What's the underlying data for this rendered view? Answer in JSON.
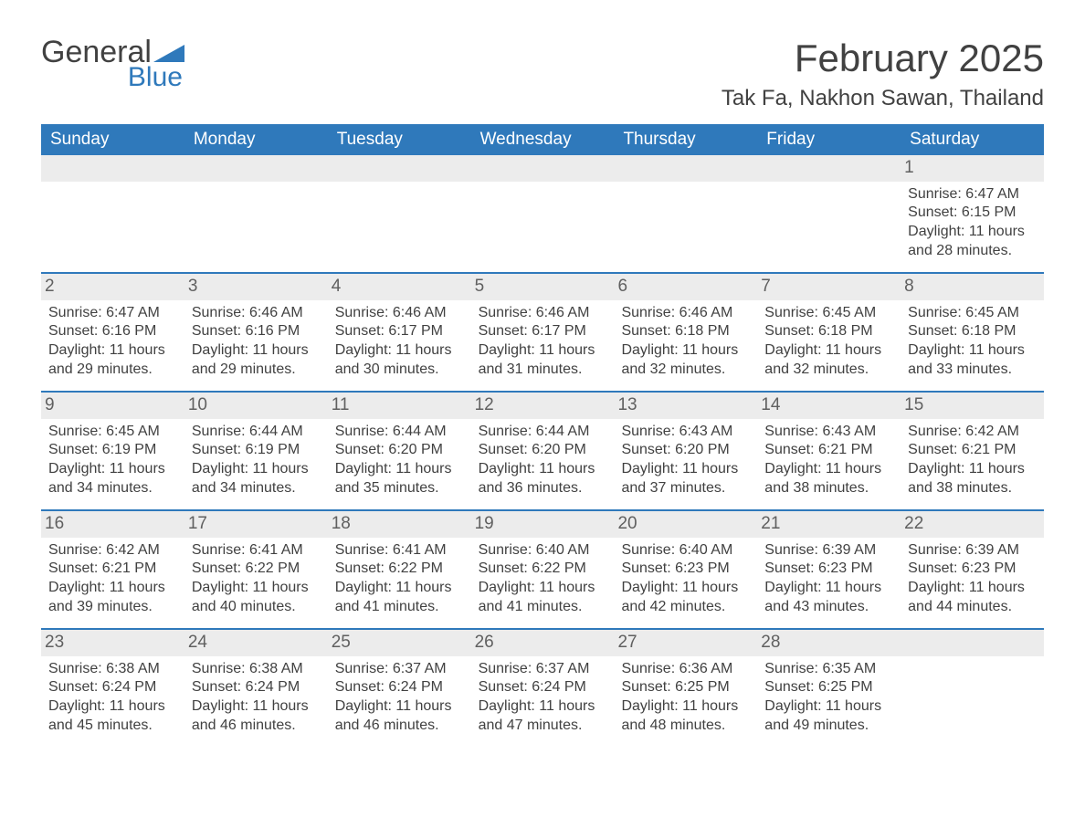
{
  "logo": {
    "word1": "General",
    "word2": "Blue"
  },
  "title": "February 2025",
  "location": "Tak Fa, Nakhon Sawan, Thailand",
  "colors": {
    "brand_blue": "#2f79bb",
    "header_bg": "#2f79bb",
    "header_text": "#ffffff",
    "daynum_bg": "#ececec",
    "text": "#414141",
    "row_border": "#2f79bb"
  },
  "weekdays": [
    "Sunday",
    "Monday",
    "Tuesday",
    "Wednesday",
    "Thursday",
    "Friday",
    "Saturday"
  ],
  "weeks": [
    [
      null,
      null,
      null,
      null,
      null,
      null,
      {
        "n": "1",
        "sr": "6:47 AM",
        "ss": "6:15 PM",
        "dl": "11 hours and 28 minutes."
      }
    ],
    [
      {
        "n": "2",
        "sr": "6:47 AM",
        "ss": "6:16 PM",
        "dl": "11 hours and 29 minutes."
      },
      {
        "n": "3",
        "sr": "6:46 AM",
        "ss": "6:16 PM",
        "dl": "11 hours and 29 minutes."
      },
      {
        "n": "4",
        "sr": "6:46 AM",
        "ss": "6:17 PM",
        "dl": "11 hours and 30 minutes."
      },
      {
        "n": "5",
        "sr": "6:46 AM",
        "ss": "6:17 PM",
        "dl": "11 hours and 31 minutes."
      },
      {
        "n": "6",
        "sr": "6:46 AM",
        "ss": "6:18 PM",
        "dl": "11 hours and 32 minutes."
      },
      {
        "n": "7",
        "sr": "6:45 AM",
        "ss": "6:18 PM",
        "dl": "11 hours and 32 minutes."
      },
      {
        "n": "8",
        "sr": "6:45 AM",
        "ss": "6:18 PM",
        "dl": "11 hours and 33 minutes."
      }
    ],
    [
      {
        "n": "9",
        "sr": "6:45 AM",
        "ss": "6:19 PM",
        "dl": "11 hours and 34 minutes."
      },
      {
        "n": "10",
        "sr": "6:44 AM",
        "ss": "6:19 PM",
        "dl": "11 hours and 34 minutes."
      },
      {
        "n": "11",
        "sr": "6:44 AM",
        "ss": "6:20 PM",
        "dl": "11 hours and 35 minutes."
      },
      {
        "n": "12",
        "sr": "6:44 AM",
        "ss": "6:20 PM",
        "dl": "11 hours and 36 minutes."
      },
      {
        "n": "13",
        "sr": "6:43 AM",
        "ss": "6:20 PM",
        "dl": "11 hours and 37 minutes."
      },
      {
        "n": "14",
        "sr": "6:43 AM",
        "ss": "6:21 PM",
        "dl": "11 hours and 38 minutes."
      },
      {
        "n": "15",
        "sr": "6:42 AM",
        "ss": "6:21 PM",
        "dl": "11 hours and 38 minutes."
      }
    ],
    [
      {
        "n": "16",
        "sr": "6:42 AM",
        "ss": "6:21 PM",
        "dl": "11 hours and 39 minutes."
      },
      {
        "n": "17",
        "sr": "6:41 AM",
        "ss": "6:22 PM",
        "dl": "11 hours and 40 minutes."
      },
      {
        "n": "18",
        "sr": "6:41 AM",
        "ss": "6:22 PM",
        "dl": "11 hours and 41 minutes."
      },
      {
        "n": "19",
        "sr": "6:40 AM",
        "ss": "6:22 PM",
        "dl": "11 hours and 41 minutes."
      },
      {
        "n": "20",
        "sr": "6:40 AM",
        "ss": "6:23 PM",
        "dl": "11 hours and 42 minutes."
      },
      {
        "n": "21",
        "sr": "6:39 AM",
        "ss": "6:23 PM",
        "dl": "11 hours and 43 minutes."
      },
      {
        "n": "22",
        "sr": "6:39 AM",
        "ss": "6:23 PM",
        "dl": "11 hours and 44 minutes."
      }
    ],
    [
      {
        "n": "23",
        "sr": "6:38 AM",
        "ss": "6:24 PM",
        "dl": "11 hours and 45 minutes."
      },
      {
        "n": "24",
        "sr": "6:38 AM",
        "ss": "6:24 PM",
        "dl": "11 hours and 46 minutes."
      },
      {
        "n": "25",
        "sr": "6:37 AM",
        "ss": "6:24 PM",
        "dl": "11 hours and 46 minutes."
      },
      {
        "n": "26",
        "sr": "6:37 AM",
        "ss": "6:24 PM",
        "dl": "11 hours and 47 minutes."
      },
      {
        "n": "27",
        "sr": "6:36 AM",
        "ss": "6:25 PM",
        "dl": "11 hours and 48 minutes."
      },
      {
        "n": "28",
        "sr": "6:35 AM",
        "ss": "6:25 PM",
        "dl": "11 hours and 49 minutes."
      },
      null
    ]
  ],
  "labels": {
    "sunrise": "Sunrise: ",
    "sunset": "Sunset: ",
    "daylight": "Daylight: "
  }
}
